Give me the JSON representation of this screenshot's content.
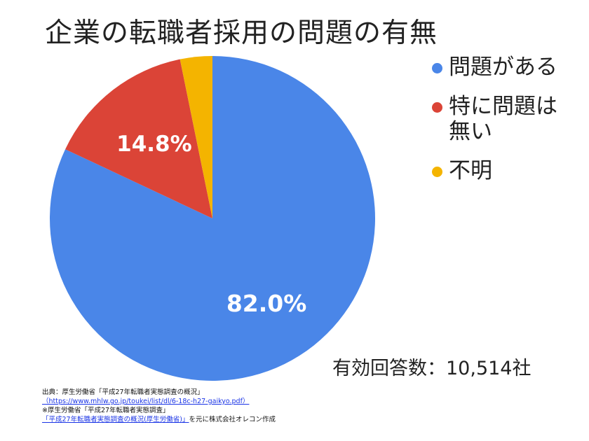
{
  "chart_data": {
    "type": "pie",
    "title": "企業の転職者採用の問題の有無",
    "categories": [
      "問題がある",
      "特に問題は無い",
      "不明"
    ],
    "values": [
      82.0,
      14.8,
      3.2
    ],
    "data_labels": [
      "82.0%",
      "14.8%",
      ""
    ],
    "colors": [
      "#4a86e8",
      "#db4437",
      "#f4b400"
    ],
    "legend_position": "right",
    "start_angle": "12 o'clock",
    "direction": "clockwise"
  },
  "legend": {
    "items": [
      {
        "label": "問題がある",
        "color": "#4a86e8"
      },
      {
        "label": "特に問題は無い",
        "color": "#db4437"
      },
      {
        "label": "不明",
        "color": "#f4b400"
      }
    ]
  },
  "note": {
    "sample_size": "有効回答数：10,514社"
  },
  "source": {
    "line1": "出典：厚生労働省「平成27年転職者実態調査の概況」",
    "url_text": "（https://www.mhlw.go.jp/toukei/list/dl/6-18c-h27-gaikyo.pdf）",
    "line3": "※厚生労働省「平成27年転職者実態調査」",
    "link_text": "「平成27年転職者実態調査の概況(厚生労働省)」",
    "suffix": "を元に株式会社オレコン作成"
  }
}
